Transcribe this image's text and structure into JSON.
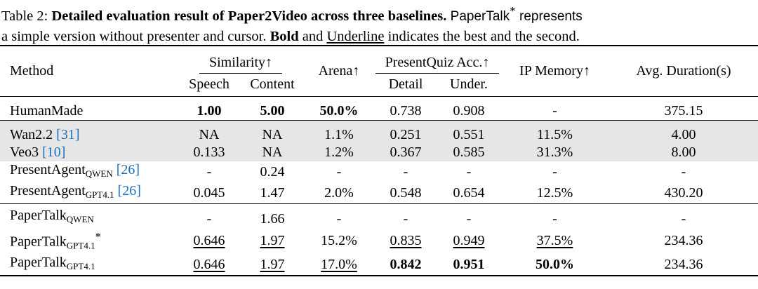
{
  "caption": {
    "lead": "Table 2: ",
    "title": "Detailed evaluation result of Paper2Video across three baselines.",
    "note_a": " PaperTalk",
    "note_star": "*",
    "note_b": " represents",
    "line2_a": "a simple version without presenter and cursor. ",
    "bold_word": "Bold",
    "and_word": " and ",
    "underline_word": "Underline",
    "line2_b": " indicates the best and the second."
  },
  "headers": {
    "method": "Method",
    "similarity": "Similarity↑",
    "speech": "Speech",
    "content": "Content",
    "arena": "Arena↑",
    "presentquiz": "PresentQuiz Acc.↑",
    "detail": "Detail",
    "under": "Under.",
    "ip_memory": "IP Memory↑",
    "avg_duration": "Avg. Duration(s)"
  },
  "rows": [
    {
      "group": 1,
      "name": "HumanMade",
      "sub": "",
      "ref": "",
      "star": "",
      "cells": [
        {
          "v": "1.00",
          "s": "b"
        },
        {
          "v": "5.00",
          "s": "b"
        },
        {
          "v": "50.0%",
          "s": "b"
        },
        {
          "v": "0.738",
          "s": ""
        },
        {
          "v": "0.908",
          "s": ""
        },
        {
          "v": "-",
          "s": ""
        },
        {
          "v": "375.15",
          "s": ""
        }
      ]
    },
    {
      "group": 2,
      "gray": true,
      "name": "Wan2.2 ",
      "sub": "",
      "ref": "[31]",
      "star": "",
      "cells": [
        {
          "v": "NA",
          "s": ""
        },
        {
          "v": "NA",
          "s": ""
        },
        {
          "v": "1.1%",
          "s": ""
        },
        {
          "v": "0.251",
          "s": ""
        },
        {
          "v": "0.551",
          "s": ""
        },
        {
          "v": "11.5%",
          "s": ""
        },
        {
          "v": "4.00",
          "s": ""
        }
      ]
    },
    {
      "group": 2,
      "gray": true,
      "name": "Veo3 ",
      "sub": "",
      "ref": "[10]",
      "star": "",
      "cells": [
        {
          "v": "0.133",
          "s": ""
        },
        {
          "v": "NA",
          "s": ""
        },
        {
          "v": "1.2%",
          "s": ""
        },
        {
          "v": "0.367",
          "s": ""
        },
        {
          "v": "0.585",
          "s": ""
        },
        {
          "v": "31.3%",
          "s": ""
        },
        {
          "v": "8.00",
          "s": ""
        }
      ]
    },
    {
      "group": 2,
      "name": "PresentAgent",
      "sub": "QWEN",
      "ref": "[26]",
      "star": "",
      "cells": [
        {
          "v": "-",
          "s": ""
        },
        {
          "v": "0.24",
          "s": ""
        },
        {
          "v": "-",
          "s": ""
        },
        {
          "v": "-",
          "s": ""
        },
        {
          "v": "-",
          "s": ""
        },
        {
          "v": "-",
          "s": ""
        },
        {
          "v": "-",
          "s": ""
        }
      ]
    },
    {
      "group": 2,
      "name": "PresentAgent",
      "sub": "GPT4.1",
      "ref": "[26]",
      "star": "",
      "cells": [
        {
          "v": "0.045",
          "s": ""
        },
        {
          "v": "1.47",
          "s": ""
        },
        {
          "v": "2.0%",
          "s": ""
        },
        {
          "v": "0.548",
          "s": ""
        },
        {
          "v": "0.654",
          "s": ""
        },
        {
          "v": "12.5%",
          "s": ""
        },
        {
          "v": "430.20",
          "s": ""
        }
      ]
    },
    {
      "group": 3,
      "name": "PaperTalk",
      "sub": "QWEN",
      "ref": "",
      "star": "",
      "cells": [
        {
          "v": "-",
          "s": ""
        },
        {
          "v": "1.66",
          "s": ""
        },
        {
          "v": "-",
          "s": ""
        },
        {
          "v": "-",
          "s": ""
        },
        {
          "v": "-",
          "s": ""
        },
        {
          "v": "-",
          "s": ""
        },
        {
          "v": "-",
          "s": ""
        }
      ]
    },
    {
      "group": 3,
      "name": "PaperTalk",
      "sub": "GPT4.1",
      "ref": "",
      "star": "*",
      "cells": [
        {
          "v": "0.646",
          "s": "u"
        },
        {
          "v": "1.97",
          "s": "u"
        },
        {
          "v": "15.2%",
          "s": ""
        },
        {
          "v": "0.835",
          "s": "u"
        },
        {
          "v": "0.949",
          "s": "u"
        },
        {
          "v": "37.5%",
          "s": "u"
        },
        {
          "v": "234.36",
          "s": ""
        }
      ]
    },
    {
      "group": 3,
      "name": "PaperTalk",
      "sub": "GPT4.1",
      "ref": "",
      "star": "",
      "cells": [
        {
          "v": "0.646",
          "s": "u"
        },
        {
          "v": "1.97",
          "s": "u"
        },
        {
          "v": "17.0%",
          "s": "u"
        },
        {
          "v": "0.842",
          "s": "b"
        },
        {
          "v": "0.951",
          "s": "b"
        },
        {
          "v": "50.0%",
          "s": "b"
        },
        {
          "v": "234.36",
          "s": ""
        }
      ]
    }
  ]
}
